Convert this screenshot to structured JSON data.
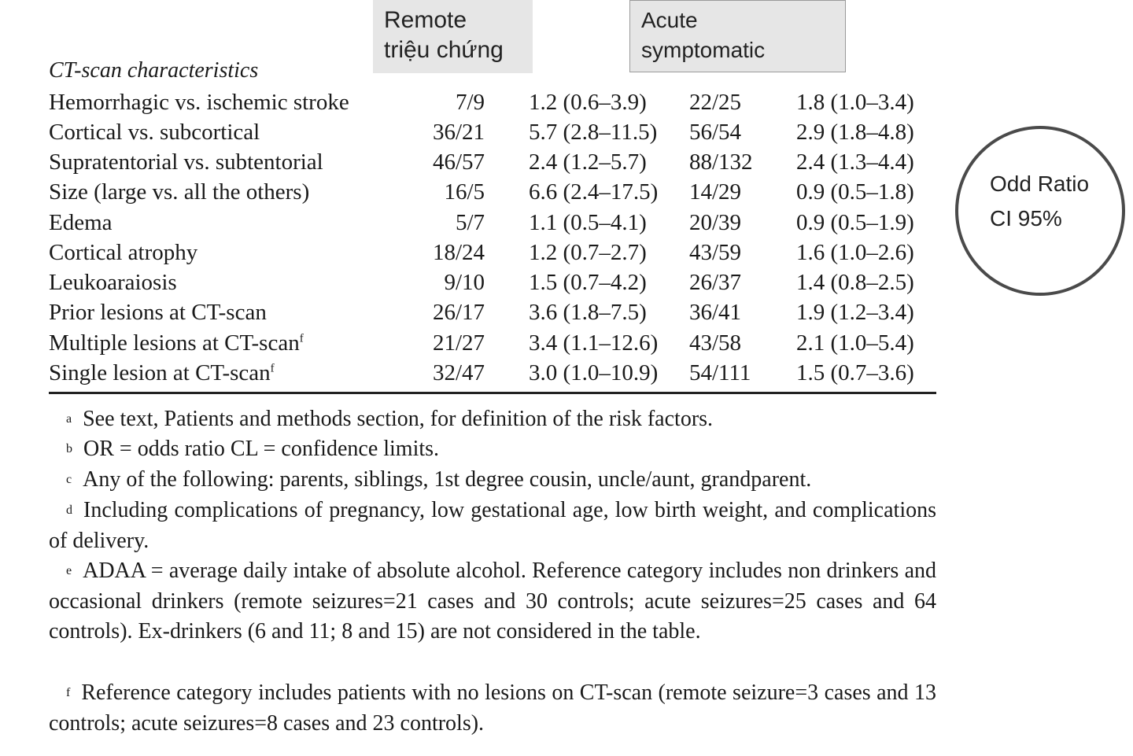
{
  "headers": {
    "remote": [
      "Remote",
      "triệu chứng"
    ],
    "acute": [
      "Acute",
      "symptomatic"
    ]
  },
  "section_title": "CT-scan characteristics",
  "rows": [
    {
      "label": "Hemorrhagic vs. ischemic stroke",
      "sup": "",
      "remote": "7/9",
      "remote_or": "1.2 (0.6–3.9)",
      "acute": "22/25",
      "acute_or": "1.8 (1.0–3.4)"
    },
    {
      "label": "Cortical vs. subcortical",
      "sup": "",
      "remote": "36/21",
      "remote_or": "5.7 (2.8–11.5)",
      "acute": "56/54",
      "acute_or": "2.9 (1.8–4.8)"
    },
    {
      "label": "Supratentorial vs. subtentorial",
      "sup": "",
      "remote": "46/57",
      "remote_or": "2.4 (1.2–5.7)",
      "acute": "88/132",
      "acute_or": "2.4 (1.3–4.4)"
    },
    {
      "label": "Size (large vs. all the others)",
      "sup": "",
      "remote": "16/5",
      "remote_or": "6.6 (2.4–17.5)",
      "acute": "14/29",
      "acute_or": "0.9 (0.5–1.8)"
    },
    {
      "label": "Edema",
      "sup": "",
      "remote": "5/7",
      "remote_or": "1.1 (0.5–4.1)",
      "acute": "20/39",
      "acute_or": "0.9 (0.5–1.9)"
    },
    {
      "label": "Cortical atrophy",
      "sup": "",
      "remote": "18/24",
      "remote_or": "1.2 (0.7–2.7)",
      "acute": "43/59",
      "acute_or": "1.6 (1.0–2.6)"
    },
    {
      "label": "Leukoaraiosis",
      "sup": "",
      "remote": "9/10",
      "remote_or": "1.5 (0.7–4.2)",
      "acute": "26/37",
      "acute_or": "1.4 (0.8–2.5)"
    },
    {
      "label": "Prior lesions at CT-scan",
      "sup": "",
      "remote": "26/17",
      "remote_or": "3.6 (1.8–7.5)",
      "acute": "36/41",
      "acute_or": "1.9 (1.2–3.4)"
    },
    {
      "label": "Multiple lesions at CT-scan",
      "sup": "f",
      "remote": "21/27",
      "remote_or": "3.4 (1.1–12.6)",
      "acute": "43/58",
      "acute_or": "2.1 (1.0–5.4)"
    },
    {
      "label": "Single lesion at CT-scan",
      "sup": "f",
      "remote": "32/47",
      "remote_or": "3.0 (1.0–10.9)",
      "acute": "54/111",
      "acute_or": "1.5 (0.7–3.6)"
    }
  ],
  "footnotes": {
    "a": {
      "mark": "a",
      "text": "See text, Patients and methods section, for definition of the risk factors."
    },
    "b": {
      "mark": "b",
      "text": "OR = odds ratio CL = confidence limits."
    },
    "c": {
      "mark": "c",
      "text": "Any of the following: parents, siblings, 1st degree cousin, uncle/aunt, grandparent."
    },
    "d": {
      "mark": "d",
      "text": "Including complications of pregnancy, low gestational age, low birth weight, and complications of delivery."
    },
    "e": {
      "mark": "e",
      "text": "ADAA = average daily intake of absolute alcohol. Reference category includes non drinkers and occasional drinkers (remote seizures=21 cases and 30 controls; acute seizures=25 cases and 64 controls). Ex-drinkers (6 and 11; 8 and 15) are not considered in the table."
    },
    "f": {
      "mark": "f",
      "text": "Reference category includes patients with no lesions on CT-scan (remote seizure=3 cases and 13 controls; acute seizures=8 cases and 23 controls)."
    }
  },
  "annotation": [
    "Odd Ratio",
    "CI 95%"
  ]
}
